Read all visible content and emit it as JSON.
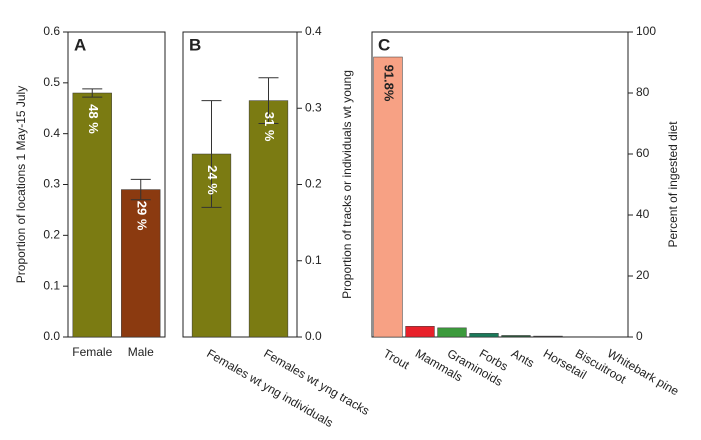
{
  "chart_data": [
    {
      "type": "bar",
      "panel_label": "A",
      "y_label": "Proportion of locations 1 May-15 July",
      "categories": [
        "Female",
        "Male"
      ],
      "values": [
        0.48,
        0.29
      ],
      "value_labels": [
        "48 %",
        "29 %"
      ],
      "errors": [
        0.008,
        0.02
      ],
      "colors": [
        "#7b7b12",
        "#8b3a10"
      ],
      "ylim": [
        0,
        0.6
      ],
      "yticks": [
        {
          "value": 0,
          "label": "0.0"
        },
        0.1,
        0.2,
        0.3,
        0.4,
        0.5,
        0.6
      ],
      "yaxis_position": "left"
    },
    {
      "type": "bar",
      "panel_label": "B",
      "y_label": "Proportion of tracks or individuals wt young",
      "categories": [
        "Females wt yng individuals",
        "Females wt yng tracks"
      ],
      "values": [
        0.24,
        0.31
      ],
      "value_labels": [
        "24 %",
        "31 %"
      ],
      "errors": [
        0.07,
        0.03
      ],
      "colors": [
        "#7b7b12",
        "#7b7b12"
      ],
      "ylim": [
        0,
        0.4
      ],
      "yticks": [
        {
          "value": 0,
          "label": "0.0"
        },
        0.1,
        0.2,
        0.3,
        0.4
      ],
      "yaxis_position": "right"
    },
    {
      "type": "bar",
      "panel_label": "C",
      "y_label": "Percent of ingested diet",
      "categories": [
        "Trout",
        "Mammals",
        "Graminoids",
        "Forbs",
        "Ants",
        "Horsetail",
        "Biscuitroot",
        "Whitebark pine"
      ],
      "values": [
        91.8,
        3.5,
        3,
        1.2,
        0.5,
        0.3,
        0.1,
        0
      ],
      "value_labels": [
        "91.8%",
        null,
        null,
        null,
        null,
        null,
        null,
        null
      ],
      "colors": [
        "#f7a184",
        "#e8202a",
        "#3c9a3c",
        "#1a7a5a",
        "#2a5a3a",
        "#3a3a3a",
        "#3a3a3a",
        "#3a3a3a"
      ],
      "ylim": [
        0,
        100
      ],
      "yticks": [
        0,
        20,
        40,
        60,
        80,
        100
      ],
      "yaxis_position": "right"
    }
  ]
}
